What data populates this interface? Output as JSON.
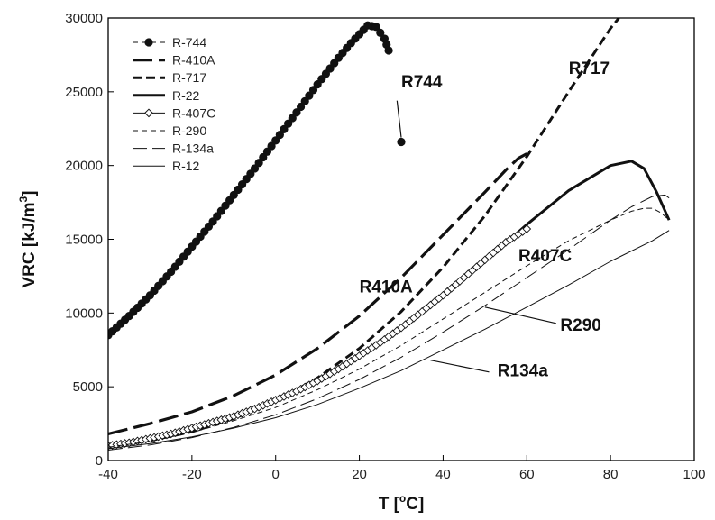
{
  "chart_data": {
    "type": "line",
    "title": "",
    "xlabel": {
      "main": "T [",
      "sup": "o",
      "end": "C]"
    },
    "ylabel": {
      "main": "VRC [kJ/m",
      "sup": "3",
      "end": "]"
    },
    "xlim": [
      -40,
      100
    ],
    "ylim": [
      0,
      30000
    ],
    "xticks": [
      -40,
      -20,
      0,
      20,
      40,
      60,
      80,
      100
    ],
    "yticks": [
      0,
      5000,
      10000,
      15000,
      20000,
      25000,
      30000
    ],
    "grid": false,
    "legend_position": "top-left",
    "series": [
      {
        "name": "R-744",
        "style": "dots",
        "color": "#111111",
        "x": [
          -40,
          -35,
          -30,
          -25,
          -20,
          -15,
          -10,
          -5,
          0,
          5,
          10,
          15,
          18,
          20,
          22,
          24,
          25,
          26,
          26.5,
          27,
          30
        ],
        "y": [
          8500,
          9800,
          11200,
          12800,
          14500,
          16200,
          18000,
          19800,
          21700,
          23600,
          25500,
          27300,
          28300,
          28900,
          29500,
          29400,
          29000,
          28600,
          28200,
          27800,
          21600
        ]
      },
      {
        "name": "R-410A",
        "style": "long-dash-thick",
        "color": "#111111",
        "x": [
          -40,
          -30,
          -20,
          -10,
          0,
          10,
          20,
          30,
          40,
          50,
          55,
          58,
          60
        ],
        "y": [
          1800,
          2500,
          3300,
          4400,
          5800,
          7600,
          9800,
          12400,
          15300,
          18200,
          19700,
          20500,
          20800
        ]
      },
      {
        "name": "R-717",
        "style": "dash-thick",
        "color": "#111111",
        "x": [
          -40,
          -30,
          -20,
          -10,
          0,
          10,
          20,
          30,
          40,
          50,
          60,
          70,
          80,
          82
        ],
        "y": [
          900,
          1350,
          1950,
          2850,
          4000,
          5600,
          7600,
          10100,
          13100,
          16600,
          20600,
          25000,
          29300,
          30000
        ]
      },
      {
        "name": "R-22",
        "style": "solid-thick",
        "color": "#111111",
        "x": [
          -40,
          -30,
          -20,
          -10,
          0,
          10,
          20,
          30,
          40,
          50,
          60,
          70,
          80,
          85,
          88,
          91,
          94
        ],
        "y": [
          1000,
          1500,
          2200,
          3000,
          4100,
          5500,
          7100,
          9000,
          11200,
          13500,
          16000,
          18300,
          20000,
          20300,
          19800,
          18200,
          16300
        ]
      },
      {
        "name": "R-407C",
        "style": "diamond",
        "color": "#111111",
        "x": [
          -40,
          -35,
          -30,
          -25,
          -20,
          -15,
          -10,
          -5,
          0,
          5,
          10,
          15,
          20,
          25,
          30,
          35,
          40,
          45,
          50,
          55,
          60
        ],
        "y": [
          1000,
          1200,
          1500,
          1800,
          2200,
          2600,
          3000,
          3500,
          4100,
          4700,
          5400,
          6200,
          7100,
          8000,
          9000,
          10100,
          11200,
          12400,
          13600,
          14800,
          15700
        ]
      },
      {
        "name": "R-290",
        "style": "short-dash-thin",
        "color": "#111111",
        "x": [
          -40,
          -30,
          -20,
          -10,
          0,
          10,
          20,
          30,
          40,
          50,
          60,
          70,
          80,
          85,
          88,
          90,
          92,
          94
        ],
        "y": [
          900,
          1300,
          1900,
          2700,
          3600,
          4800,
          6200,
          7800,
          9600,
          11400,
          13200,
          14900,
          16300,
          16900,
          17100,
          17100,
          16800,
          16300
        ]
      },
      {
        "name": "R-134a",
        "style": "long-dash-thin",
        "color": "#111111",
        "x": [
          -40,
          -30,
          -20,
          -10,
          0,
          10,
          20,
          30,
          40,
          50,
          60,
          70,
          80,
          85,
          90,
          93,
          94
        ],
        "y": [
          700,
          1050,
          1550,
          2250,
          3100,
          4200,
          5500,
          7000,
          8700,
          10500,
          12400,
          14300,
          16300,
          17200,
          17900,
          18000,
          17800
        ]
      },
      {
        "name": "R-12",
        "style": "solid-thin",
        "color": "#111111",
        "x": [
          -40,
          -30,
          -20,
          -10,
          0,
          10,
          20,
          30,
          40,
          50,
          60,
          70,
          80,
          90,
          94
        ],
        "y": [
          800,
          1150,
          1600,
          2200,
          2900,
          3800,
          4900,
          6100,
          7500,
          8900,
          10400,
          11900,
          13500,
          14900,
          15600
        ]
      }
    ],
    "annotations": [
      {
        "text": "R744",
        "label_at": [
          30,
          25300
        ],
        "line_from": [
          29,
          24400
        ],
        "line_to": [
          30,
          21900
        ]
      },
      {
        "text": "R717",
        "label_at": [
          70,
          26200
        ]
      },
      {
        "text": "R410A",
        "label_at": [
          20,
          11400
        ]
      },
      {
        "text": "R407C",
        "label_at": [
          58,
          13500
        ]
      },
      {
        "text": "R290",
        "label_at": [
          68,
          8800
        ],
        "line_from": [
          67,
          9300
        ],
        "line_to": [
          50,
          10400
        ]
      },
      {
        "text": "R134a",
        "label_at": [
          53,
          5700
        ],
        "line_from": [
          51,
          6000
        ],
        "line_to": [
          37,
          6800
        ]
      }
    ]
  }
}
